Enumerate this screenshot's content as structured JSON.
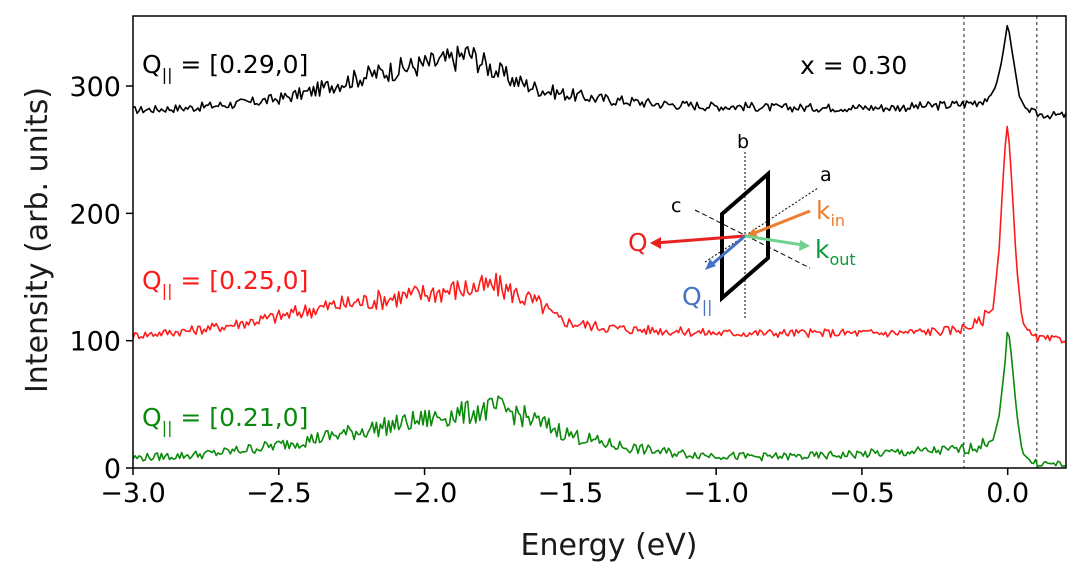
{
  "chart_data": {
    "type": "line",
    "xlabel": "Energy (eV)",
    "ylabel": "Intensity (arb. units)",
    "xlim": [
      -3.0,
      0.2
    ],
    "ylim": [
      0,
      355
    ],
    "xticks": [
      "−3.0",
      "−2.5",
      "−2.0",
      "−1.5",
      "−1.0",
      "−0.5",
      "0.0"
    ],
    "xtick_values": [
      -3.0,
      -2.5,
      -2.0,
      -1.5,
      -1.0,
      -0.5,
      0.0
    ],
    "yticks": [
      "0",
      "100",
      "200",
      "300"
    ],
    "ytick_values": [
      0,
      100,
      200,
      300
    ],
    "vertical_lines": [
      -0.15,
      0.1
    ],
    "composition_label": "x = 0.30",
    "series": [
      {
        "label_prefix": "Q",
        "label_sub": "||",
        "label_value": " = [0.29,0]",
        "color": "#000000",
        "x": [
          -3.0,
          -2.9,
          -2.8,
          -2.7,
          -2.6,
          -2.5,
          -2.4,
          -2.3,
          -2.2,
          -2.1,
          -2.0,
          -1.9,
          -1.85,
          -1.8,
          -1.7,
          -1.6,
          -1.5,
          -1.4,
          -1.3,
          -1.2,
          -1.1,
          -1.0,
          -0.9,
          -0.8,
          -0.7,
          -0.6,
          -0.5,
          -0.4,
          -0.3,
          -0.2,
          -0.15,
          -0.1,
          -0.06,
          -0.04,
          -0.02,
          0.0,
          0.02,
          0.04,
          0.06,
          0.08,
          0.1,
          0.15,
          0.2
        ],
        "y": [
          281,
          282,
          283,
          285,
          287,
          290,
          295,
          302,
          308,
          313,
          317,
          321,
          326,
          318,
          305,
          297,
          293,
          290,
          288,
          286,
          285,
          284,
          284,
          283,
          283,
          283,
          283,
          283,
          284,
          285,
          286,
          288,
          292,
          300,
          320,
          350,
          320,
          292,
          283,
          280,
          278,
          277,
          277
        ]
      },
      {
        "label_prefix": "Q",
        "label_sub": "||",
        "label_value": " = [0.25,0]",
        "color": "#ff1a1a",
        "x": [
          -3.0,
          -2.9,
          -2.8,
          -2.7,
          -2.6,
          -2.5,
          -2.4,
          -2.3,
          -2.2,
          -2.1,
          -2.0,
          -1.9,
          -1.8,
          -1.75,
          -1.7,
          -1.6,
          -1.55,
          -1.5,
          -1.4,
          -1.3,
          -1.2,
          -1.1,
          -1.0,
          -0.9,
          -0.8,
          -0.7,
          -0.6,
          -0.5,
          -0.4,
          -0.3,
          -0.2,
          -0.15,
          -0.1,
          -0.05,
          -0.03,
          -0.01,
          0.0,
          0.01,
          0.03,
          0.05,
          0.08,
          0.1,
          0.15,
          0.2
        ],
        "y": [
          104,
          106,
          108,
          111,
          115,
          119,
          124,
          128,
          131,
          134,
          137,
          140,
          142,
          143,
          138,
          128,
          118,
          114,
          111,
          109,
          108,
          107,
          106,
          106,
          106,
          106,
          106,
          106,
          106,
          107,
          108,
          110,
          114,
          125,
          170,
          250,
          272,
          240,
          160,
          115,
          104,
          102,
          101,
          101
        ]
      },
      {
        "label_prefix": "Q",
        "label_sub": "||",
        "label_value": " = [0.21,0]",
        "color": "#0a8a0a",
        "x": [
          -3.0,
          -2.9,
          -2.8,
          -2.7,
          -2.6,
          -2.5,
          -2.4,
          -2.3,
          -2.2,
          -2.1,
          -2.0,
          -1.9,
          -1.8,
          -1.75,
          -1.7,
          -1.6,
          -1.5,
          -1.4,
          -1.3,
          -1.2,
          -1.1,
          -1.0,
          -0.9,
          -0.8,
          -0.7,
          -0.6,
          -0.5,
          -0.4,
          -0.3,
          -0.2,
          -0.15,
          -0.1,
          -0.05,
          -0.03,
          -0.01,
          0.0,
          0.01,
          0.03,
          0.05,
          0.08,
          0.1,
          0.15,
          0.2
        ],
        "y": [
          8,
          9,
          10,
          12,
          15,
          18,
          22,
          26,
          30,
          34,
          38,
          42,
          45,
          47,
          44,
          35,
          26,
          20,
          16,
          13,
          11,
          10,
          9,
          9,
          9,
          10,
          11,
          12,
          13,
          14,
          15,
          17,
          22,
          40,
          80,
          112,
          95,
          45,
          12,
          5,
          4,
          3,
          3
        ]
      }
    ]
  },
  "inset": {
    "axis_a": "a",
    "axis_b": "b",
    "axis_c": "c",
    "vec_q": "Q",
    "vec_q_par": "Q",
    "vec_q_par_sub": "||",
    "k_in": "k",
    "k_in_sub": "in",
    "k_out": "k",
    "k_out_sub": "out",
    "color_q": "#e8231f",
    "color_qpar": "#4472c4",
    "color_kin": "#ed7d31",
    "color_kout": "#70d28e"
  }
}
